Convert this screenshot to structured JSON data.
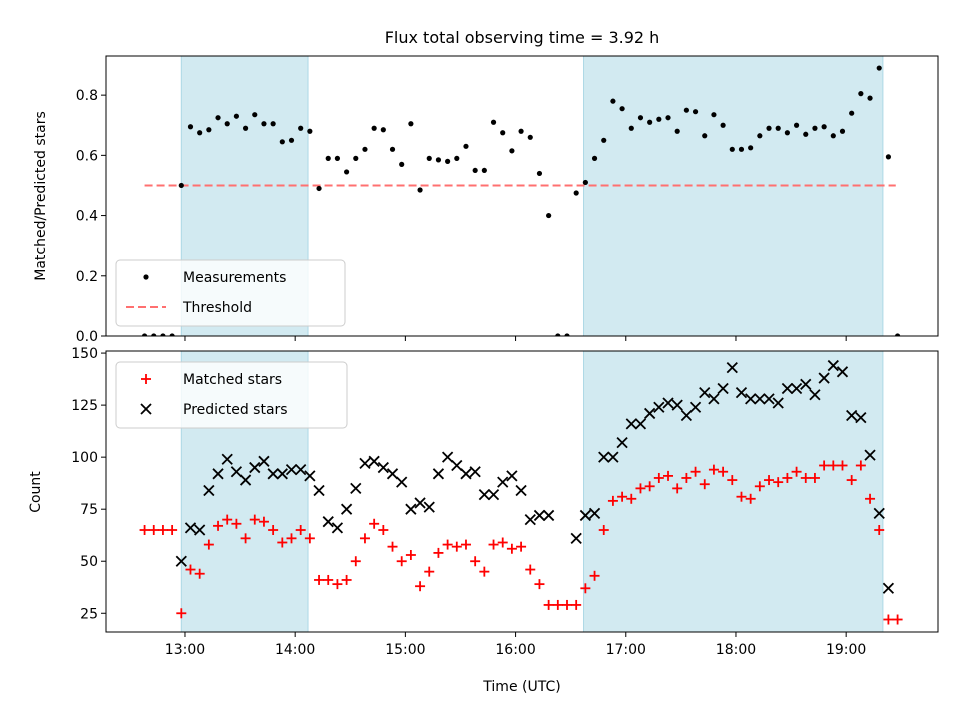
{
  "chart_data": [
    {
      "type": "scatter",
      "title": "Flux total observing time = 3.92 h",
      "xlabel": "",
      "ylabel": "Matched/Predicted stars",
      "xlim": [
        "12:17",
        "19:50"
      ],
      "ylim": [
        0,
        0.93
      ],
      "yticks": [
        "0.0",
        "0.2",
        "0.4",
        "0.6",
        "0.8"
      ],
      "grid": false,
      "legend_position": "lower-left",
      "shaded_spans": [
        [
          "12:58",
          "14:07"
        ],
        [
          "16:37",
          "19:20"
        ]
      ],
      "threshold": {
        "name": "Threshold",
        "y": 0.5,
        "x_range": [
          "12:38",
          "19:27"
        ],
        "color": "#ff7070",
        "style": "dashed"
      },
      "series": [
        {
          "name": "Measurements",
          "color": "#000000",
          "marker": "dot",
          "points": [
            [
              "12:38",
              0.0
            ],
            [
              "12:43",
              0.0
            ],
            [
              "12:48",
              0.0
            ],
            [
              "12:53",
              0.0
            ],
            [
              "12:58",
              0.5
            ],
            [
              "13:03",
              0.695
            ],
            [
              "13:08",
              0.675
            ],
            [
              "13:13",
              0.685
            ],
            [
              "13:18",
              0.725
            ],
            [
              "13:23",
              0.705
            ],
            [
              "13:28",
              0.73
            ],
            [
              "13:33",
              0.69
            ],
            [
              "13:38",
              0.735
            ],
            [
              "13:43",
              0.705
            ],
            [
              "13:48",
              0.705
            ],
            [
              "13:53",
              0.645
            ],
            [
              "13:58",
              0.65
            ],
            [
              "14:03",
              0.69
            ],
            [
              "14:08",
              0.68
            ],
            [
              "14:13",
              0.49
            ],
            [
              "14:18",
              0.59
            ],
            [
              "14:23",
              0.59
            ],
            [
              "14:28",
              0.545
            ],
            [
              "14:33",
              0.59
            ],
            [
              "14:38",
              0.62
            ],
            [
              "14:43",
              0.69
            ],
            [
              "14:48",
              0.685
            ],
            [
              "14:53",
              0.62
            ],
            [
              "14:58",
              0.57
            ],
            [
              "15:03",
              0.705
            ],
            [
              "15:08",
              0.485
            ],
            [
              "15:13",
              0.59
            ],
            [
              "15:18",
              0.585
            ],
            [
              "15:23",
              0.58
            ],
            [
              "15:28",
              0.59
            ],
            [
              "15:33",
              0.63
            ],
            [
              "15:38",
              0.55
            ],
            [
              "15:43",
              0.55
            ],
            [
              "15:48",
              0.71
            ],
            [
              "15:53",
              0.675
            ],
            [
              "15:58",
              0.615
            ],
            [
              "16:03",
              0.68
            ],
            [
              "16:08",
              0.66
            ],
            [
              "16:13",
              0.54
            ],
            [
              "16:18",
              0.4
            ],
            [
              "16:23",
              0.0
            ],
            [
              "16:28",
              0.0
            ],
            [
              "16:33",
              0.475
            ],
            [
              "16:38",
              0.51
            ],
            [
              "16:43",
              0.59
            ],
            [
              "16:48",
              0.65
            ],
            [
              "16:53",
              0.78
            ],
            [
              "16:58",
              0.755
            ],
            [
              "17:03",
              0.69
            ],
            [
              "17:08",
              0.725
            ],
            [
              "17:13",
              0.71
            ],
            [
              "17:18",
              0.72
            ],
            [
              "17:23",
              0.725
            ],
            [
              "17:28",
              0.68
            ],
            [
              "17:33",
              0.75
            ],
            [
              "17:38",
              0.745
            ],
            [
              "17:43",
              0.665
            ],
            [
              "17:48",
              0.735
            ],
            [
              "17:53",
              0.7
            ],
            [
              "17:58",
              0.62
            ],
            [
              "18:03",
              0.62
            ],
            [
              "18:08",
              0.625
            ],
            [
              "18:13",
              0.665
            ],
            [
              "18:18",
              0.69
            ],
            [
              "18:23",
              0.69
            ],
            [
              "18:28",
              0.675
            ],
            [
              "18:33",
              0.7
            ],
            [
              "18:38",
              0.67
            ],
            [
              "18:43",
              0.69
            ],
            [
              "18:48",
              0.695
            ],
            [
              "18:53",
              0.665
            ],
            [
              "18:58",
              0.68
            ],
            [
              "19:03",
              0.74
            ],
            [
              "19:08",
              0.805
            ],
            [
              "19:13",
              0.79
            ],
            [
              "19:18",
              0.89
            ],
            [
              "19:23",
              0.595
            ],
            [
              "19:28",
              0.0
            ]
          ]
        }
      ]
    },
    {
      "type": "scatter",
      "title": "",
      "xlabel": "Time (UTC)",
      "ylabel": "Count",
      "xlim": [
        "12:17",
        "19:50"
      ],
      "ylim": [
        16,
        151
      ],
      "yticks": [
        "25",
        "50",
        "75",
        "100",
        "125",
        "150"
      ],
      "xticks": [
        "13:00",
        "14:00",
        "15:00",
        "16:00",
        "17:00",
        "18:00",
        "19:00"
      ],
      "grid": false,
      "legend_position": "upper-left",
      "shaded_spans": [
        [
          "12:58",
          "14:07"
        ],
        [
          "16:37",
          "19:20"
        ]
      ],
      "series": [
        {
          "name": "Matched stars",
          "color": "#ff0000",
          "marker": "plus",
          "points": [
            [
              "12:38",
              65
            ],
            [
              "12:43",
              65
            ],
            [
              "12:48",
              65
            ],
            [
              "12:53",
              65
            ],
            [
              "12:58",
              25
            ],
            [
              "13:03",
              46
            ],
            [
              "13:08",
              44
            ],
            [
              "13:13",
              58
            ],
            [
              "13:18",
              67
            ],
            [
              "13:23",
              70
            ],
            [
              "13:28",
              68
            ],
            [
              "13:33",
              61
            ],
            [
              "13:38",
              70
            ],
            [
              "13:43",
              69
            ],
            [
              "13:48",
              65
            ],
            [
              "13:53",
              59
            ],
            [
              "13:58",
              61
            ],
            [
              "14:03",
              65
            ],
            [
              "14:08",
              61
            ],
            [
              "14:13",
              41
            ],
            [
              "14:18",
              41
            ],
            [
              "14:23",
              39
            ],
            [
              "14:28",
              41
            ],
            [
              "14:33",
              50
            ],
            [
              "14:38",
              61
            ],
            [
              "14:43",
              68
            ],
            [
              "14:48",
              65
            ],
            [
              "14:53",
              57
            ],
            [
              "14:58",
              50
            ],
            [
              "15:03",
              53
            ],
            [
              "15:08",
              38
            ],
            [
              "15:13",
              45
            ],
            [
              "15:18",
              54
            ],
            [
              "15:23",
              58
            ],
            [
              "15:28",
              57
            ],
            [
              "15:33",
              58
            ],
            [
              "15:38",
              50
            ],
            [
              "15:43",
              45
            ],
            [
              "15:48",
              58
            ],
            [
              "15:53",
              59
            ],
            [
              "15:58",
              56
            ],
            [
              "16:03",
              57
            ],
            [
              "16:08",
              46
            ],
            [
              "16:13",
              39
            ],
            [
              "16:18",
              29
            ],
            [
              "16:23",
              29
            ],
            [
              "16:28",
              29
            ],
            [
              "16:33",
              29
            ],
            [
              "16:38",
              37
            ],
            [
              "16:43",
              43
            ],
            [
              "16:48",
              65
            ],
            [
              "16:53",
              79
            ],
            [
              "16:58",
              81
            ],
            [
              "17:03",
              80
            ],
            [
              "17:08",
              85
            ],
            [
              "17:13",
              86
            ],
            [
              "17:18",
              90
            ],
            [
              "17:23",
              91
            ],
            [
              "17:28",
              85
            ],
            [
              "17:33",
              90
            ],
            [
              "17:38",
              93
            ],
            [
              "17:43",
              87
            ],
            [
              "17:48",
              94
            ],
            [
              "17:53",
              93
            ],
            [
              "17:58",
              89
            ],
            [
              "18:03",
              81
            ],
            [
              "18:08",
              80
            ],
            [
              "18:13",
              86
            ],
            [
              "18:18",
              89
            ],
            [
              "18:23",
              88
            ],
            [
              "18:28",
              90
            ],
            [
              "18:33",
              93
            ],
            [
              "18:38",
              90
            ],
            [
              "18:43",
              90
            ],
            [
              "18:48",
              96
            ],
            [
              "18:53",
              96
            ],
            [
              "18:58",
              96
            ],
            [
              "19:03",
              89
            ],
            [
              "19:08",
              96
            ],
            [
              "19:13",
              80
            ],
            [
              "19:18",
              65
            ],
            [
              "19:23",
              22
            ],
            [
              "19:28",
              22
            ]
          ]
        },
        {
          "name": "Predicted stars",
          "color": "#000000",
          "marker": "x",
          "points": [
            [
              "12:58",
              50
            ],
            [
              "13:03",
              66
            ],
            [
              "13:08",
              65
            ],
            [
              "13:13",
              84
            ],
            [
              "13:18",
              92
            ],
            [
              "13:23",
              99
            ],
            [
              "13:28",
              93
            ],
            [
              "13:33",
              89
            ],
            [
              "13:38",
              95
            ],
            [
              "13:43",
              98
            ],
            [
              "13:48",
              92
            ],
            [
              "13:53",
              92
            ],
            [
              "13:58",
              94
            ],
            [
              "14:03",
              94
            ],
            [
              "14:08",
              91
            ],
            [
              "14:13",
              84
            ],
            [
              "14:18",
              69
            ],
            [
              "14:23",
              66
            ],
            [
              "14:28",
              75
            ],
            [
              "14:33",
              85
            ],
            [
              "14:38",
              97
            ],
            [
              "14:43",
              98
            ],
            [
              "14:48",
              95
            ],
            [
              "14:53",
              92
            ],
            [
              "14:58",
              88
            ],
            [
              "15:03",
              75
            ],
            [
              "15:08",
              78
            ],
            [
              "15:13",
              76
            ],
            [
              "15:18",
              92
            ],
            [
              "15:23",
              100
            ],
            [
              "15:28",
              96
            ],
            [
              "15:33",
              92
            ],
            [
              "15:38",
              93
            ],
            [
              "15:43",
              82
            ],
            [
              "15:48",
              82
            ],
            [
              "15:53",
              88
            ],
            [
              "15:58",
              91
            ],
            [
              "16:03",
              84
            ],
            [
              "16:08",
              70
            ],
            [
              "16:13",
              72
            ],
            [
              "16:18",
              72
            ],
            [
              "16:33",
              61
            ],
            [
              "16:38",
              72
            ],
            [
              "16:43",
              73
            ],
            [
              "16:48",
              100
            ],
            [
              "16:53",
              100
            ],
            [
              "16:58",
              107
            ],
            [
              "17:03",
              116
            ],
            [
              "17:08",
              116
            ],
            [
              "17:13",
              121
            ],
            [
              "17:18",
              124
            ],
            [
              "17:23",
              126
            ],
            [
              "17:28",
              125
            ],
            [
              "17:33",
              120
            ],
            [
              "17:38",
              124
            ],
            [
              "17:43",
              131
            ],
            [
              "17:48",
              128
            ],
            [
              "17:53",
              133
            ],
            [
              "17:58",
              143
            ],
            [
              "18:03",
              131
            ],
            [
              "18:08",
              128
            ],
            [
              "18:13",
              128
            ],
            [
              "18:18",
              128
            ],
            [
              "18:23",
              126
            ],
            [
              "18:28",
              133
            ],
            [
              "18:33",
              133
            ],
            [
              "18:38",
              135
            ],
            [
              "18:43",
              130
            ],
            [
              "18:48",
              138
            ],
            [
              "18:53",
              144
            ],
            [
              "18:58",
              141
            ],
            [
              "19:03",
              120
            ],
            [
              "19:08",
              119
            ],
            [
              "19:13",
              101
            ],
            [
              "19:18",
              73
            ],
            [
              "19:23",
              37
            ]
          ]
        }
      ]
    }
  ]
}
